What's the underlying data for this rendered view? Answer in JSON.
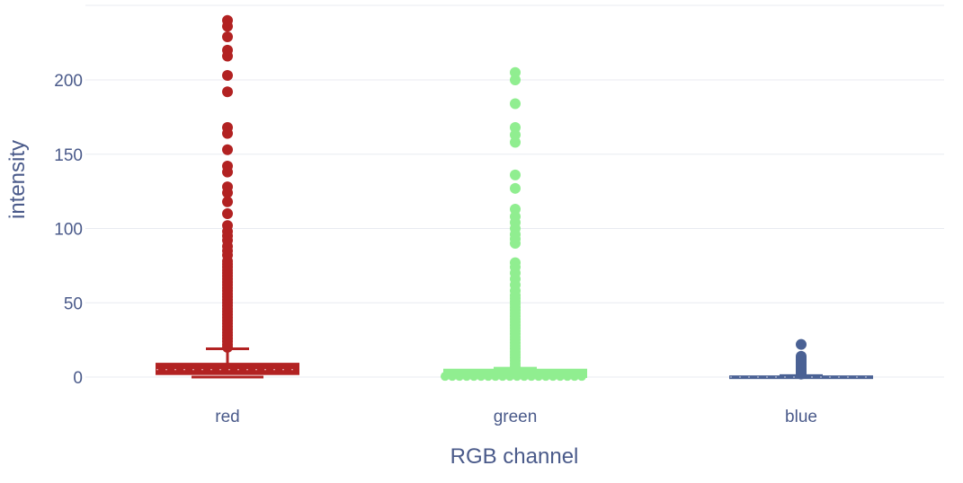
{
  "chart_data": {
    "type": "box",
    "title": "",
    "xlabel": "RGB channel",
    "ylabel": "intensity",
    "categories": [
      "red",
      "green",
      "blue"
    ],
    "ylim": [
      -5,
      250
    ],
    "yticks": [
      0,
      50,
      100,
      150,
      200
    ],
    "grid": true,
    "legend": "none",
    "series": [
      {
        "color": "#b22222",
        "box": {
          "min": 0,
          "q1": 2,
          "median": 5,
          "q3": 9,
          "upper_fence": 19
        },
        "outliers": [
          20,
          22,
          24,
          26,
          28,
          30,
          32,
          34,
          36,
          38,
          40,
          42,
          44,
          46,
          48,
          50,
          52,
          54,
          56,
          58,
          60,
          62,
          64,
          66,
          68,
          70,
          72,
          74,
          76,
          78,
          82,
          85,
          88,
          92,
          95,
          98,
          102,
          110,
          118,
          124,
          128,
          138,
          142,
          153,
          164,
          168,
          192,
          203,
          216,
          220,
          229,
          236,
          240
        ]
      },
      {
        "color": "#90ee90",
        "box": {
          "min": 0,
          "q1": 0,
          "median": 1,
          "q3": 5,
          "upper_fence": 6
        },
        "outliers": [
          7,
          9,
          11,
          13,
          15,
          17,
          19,
          21,
          23,
          25,
          27,
          29,
          31,
          33,
          35,
          37,
          39,
          41,
          43,
          45,
          47,
          49,
          51,
          53,
          55,
          58,
          62,
          66,
          70,
          74,
          77,
          90,
          93,
          96,
          100,
          104,
          108,
          113,
          127,
          136,
          158,
          163,
          168,
          184,
          200,
          205
        ]
      },
      {
        "color": "#4a6194",
        "box": {
          "min": 0,
          "q1": 0,
          "median": 0,
          "q3": 0.5,
          "upper_fence": 1
        },
        "outliers": [
          2,
          3,
          4,
          5,
          6,
          7,
          8,
          9,
          10,
          11,
          12,
          13,
          14,
          22
        ]
      }
    ]
  }
}
